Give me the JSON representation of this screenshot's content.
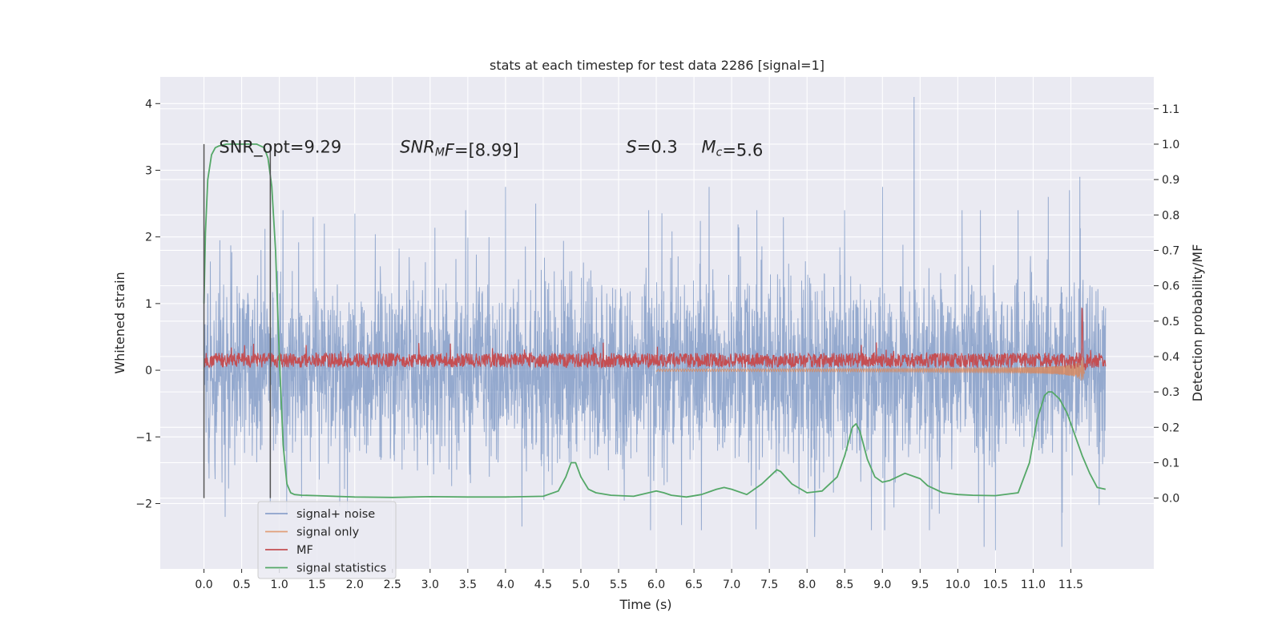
{
  "chart_data": {
    "type": "line",
    "title": "stats at each timestep for test data 2286 [signal=1]",
    "xlabel": "Time (s)",
    "ylabel": "Whitened strain",
    "y2label": "Detection probability/MF",
    "xlim": [
      -0.58,
      12.6
    ],
    "ylim": [
      -2.98,
      4.4
    ],
    "y2lim": [
      -0.2,
      1.19
    ],
    "xticks": [
      "0.0",
      "0.5",
      "1.0",
      "1.5",
      "2.0",
      "2.5",
      "3.0",
      "3.5",
      "4.0",
      "4.5",
      "5.0",
      "5.5",
      "6.0",
      "6.5",
      "7.0",
      "7.5",
      "8.0",
      "8.5",
      "9.0",
      "9.5",
      "10.0",
      "10.5",
      "11.0",
      "11.5"
    ],
    "yticks": [
      "4",
      "3",
      "2",
      "1",
      "0",
      "−1",
      "−2"
    ],
    "y2ticks": [
      "1.1",
      "1.0",
      "0.9",
      "0.8",
      "0.7",
      "0.6",
      "0.5",
      "0.4",
      "0.3",
      "0.2",
      "0.1",
      "0.0"
    ],
    "grid": true,
    "legend_position": "lower-left",
    "vlines": [
      0.0,
      0.88
    ],
    "annotations": [
      {
        "id": "snr-opt",
        "text": "SNR_opt=9.29",
        "x": 0.2,
        "y": 3.35
      },
      {
        "id": "snr-mf",
        "parts": [
          {
            "t": "SNR",
            "i": true
          },
          {
            "t": "M",
            "i": true,
            "sub": true
          },
          {
            "t": "F",
            "i": true
          },
          {
            "t": "=[8.99]"
          }
        ],
        "x": 2.6,
        "y": 3.35
      },
      {
        "id": "s-param",
        "parts": [
          {
            "t": "S",
            "i": true
          },
          {
            "t": "=0.3"
          }
        ],
        "x": 5.6,
        "y": 3.35
      },
      {
        "id": "mc-param",
        "parts": [
          {
            "t": "M",
            "i": true
          },
          {
            "t": "c",
            "i": true,
            "sub": true
          },
          {
            "t": "=5.6"
          }
        ],
        "x": 6.6,
        "y": 3.35
      }
    ],
    "series": [
      {
        "name": "signal+ noise",
        "axis": "left",
        "color": "#4c72b0",
        "description": "dense whitened noise, ±1 sigma band with peaks to about ±2.4",
        "x_range": [
          0.0,
          11.96
        ],
        "spikes": [
          [
            4.0,
            2.75
          ],
          [
            9.42,
            4.1
          ],
          [
            11.62,
            2.9
          ],
          [
            11.48,
            2.7
          ],
          [
            6.7,
            2.75
          ],
          [
            8.5,
            2.4
          ],
          [
            1.05,
            2.4
          ],
          [
            9.0,
            2.75
          ],
          [
            1.45,
            2.3
          ],
          [
            2.0,
            2.35
          ],
          [
            4.4,
            2.5
          ],
          [
            5.9,
            2.4
          ],
          [
            10.3,
            2.4
          ],
          [
            11.2,
            2.6
          ],
          [
            10.8,
            2.4
          ],
          [
            10.35,
            -2.65
          ],
          [
            10.5,
            -2.7
          ],
          [
            8.1,
            -2.5
          ],
          [
            6.6,
            -2.4
          ],
          [
            11.38,
            -2.65
          ],
          [
            0.28,
            -2.2
          ]
        ]
      },
      {
        "name": "signal only",
        "axis": "left",
        "color": "#dd8452",
        "description": "inspiral chirp growing in amplitude toward merger at about 11.65 s",
        "x_range": [
          6.0,
          11.68
        ],
        "merger_x": 11.65
      },
      {
        "name": "MF",
        "axis": "left",
        "color": "#c44e52",
        "description": "matched filter output around 0.15, peaking at 1.0 near 11.65 s",
        "x_range": [
          0.0,
          11.96
        ],
        "baseline": 0.15,
        "peak": [
          11.65,
          1.0
        ]
      },
      {
        "name": "signal statistics",
        "axis": "right",
        "color": "#55a868",
        "x": [
          0.0,
          0.02,
          0.05,
          0.1,
          0.15,
          0.2,
          0.3,
          0.5,
          0.7,
          0.8,
          0.85,
          0.9,
          0.95,
          1.0,
          1.05,
          1.1,
          1.15,
          1.2,
          1.3,
          1.5,
          2.0,
          2.5,
          3.0,
          3.5,
          4.0,
          4.5,
          4.7,
          4.8,
          4.87,
          4.93,
          5.0,
          5.1,
          5.2,
          5.4,
          5.7,
          6.0,
          6.1,
          6.2,
          6.4,
          6.6,
          6.8,
          6.9,
          7.0,
          7.2,
          7.4,
          7.55,
          7.6,
          7.65,
          7.8,
          8.0,
          8.2,
          8.4,
          8.5,
          8.6,
          8.65,
          8.7,
          8.8,
          8.9,
          9.0,
          9.1,
          9.3,
          9.5,
          9.6,
          9.8,
          10.0,
          10.2,
          10.5,
          10.8,
          10.95,
          11.05,
          11.15,
          11.2,
          11.25,
          11.35,
          11.45,
          11.55,
          11.65,
          11.75,
          11.85,
          11.96
        ],
        "values": [
          0.55,
          0.75,
          0.9,
          0.97,
          0.99,
          0.995,
          1.0,
          1.0,
          1.0,
          0.99,
          0.96,
          0.88,
          0.7,
          0.4,
          0.15,
          0.04,
          0.015,
          0.01,
          0.008,
          0.007,
          0.003,
          0.002,
          0.004,
          0.003,
          0.003,
          0.005,
          0.02,
          0.06,
          0.1,
          0.1,
          0.06,
          0.025,
          0.015,
          0.008,
          0.005,
          0.02,
          0.015,
          0.008,
          0.003,
          0.01,
          0.025,
          0.03,
          0.025,
          0.01,
          0.04,
          0.07,
          0.08,
          0.075,
          0.04,
          0.015,
          0.02,
          0.06,
          0.12,
          0.2,
          0.21,
          0.19,
          0.11,
          0.06,
          0.045,
          0.05,
          0.07,
          0.055,
          0.035,
          0.015,
          0.01,
          0.008,
          0.007,
          0.015,
          0.1,
          0.22,
          0.29,
          0.3,
          0.3,
          0.28,
          0.24,
          0.18,
          0.12,
          0.07,
          0.03,
          0.025
        ]
      }
    ]
  }
}
